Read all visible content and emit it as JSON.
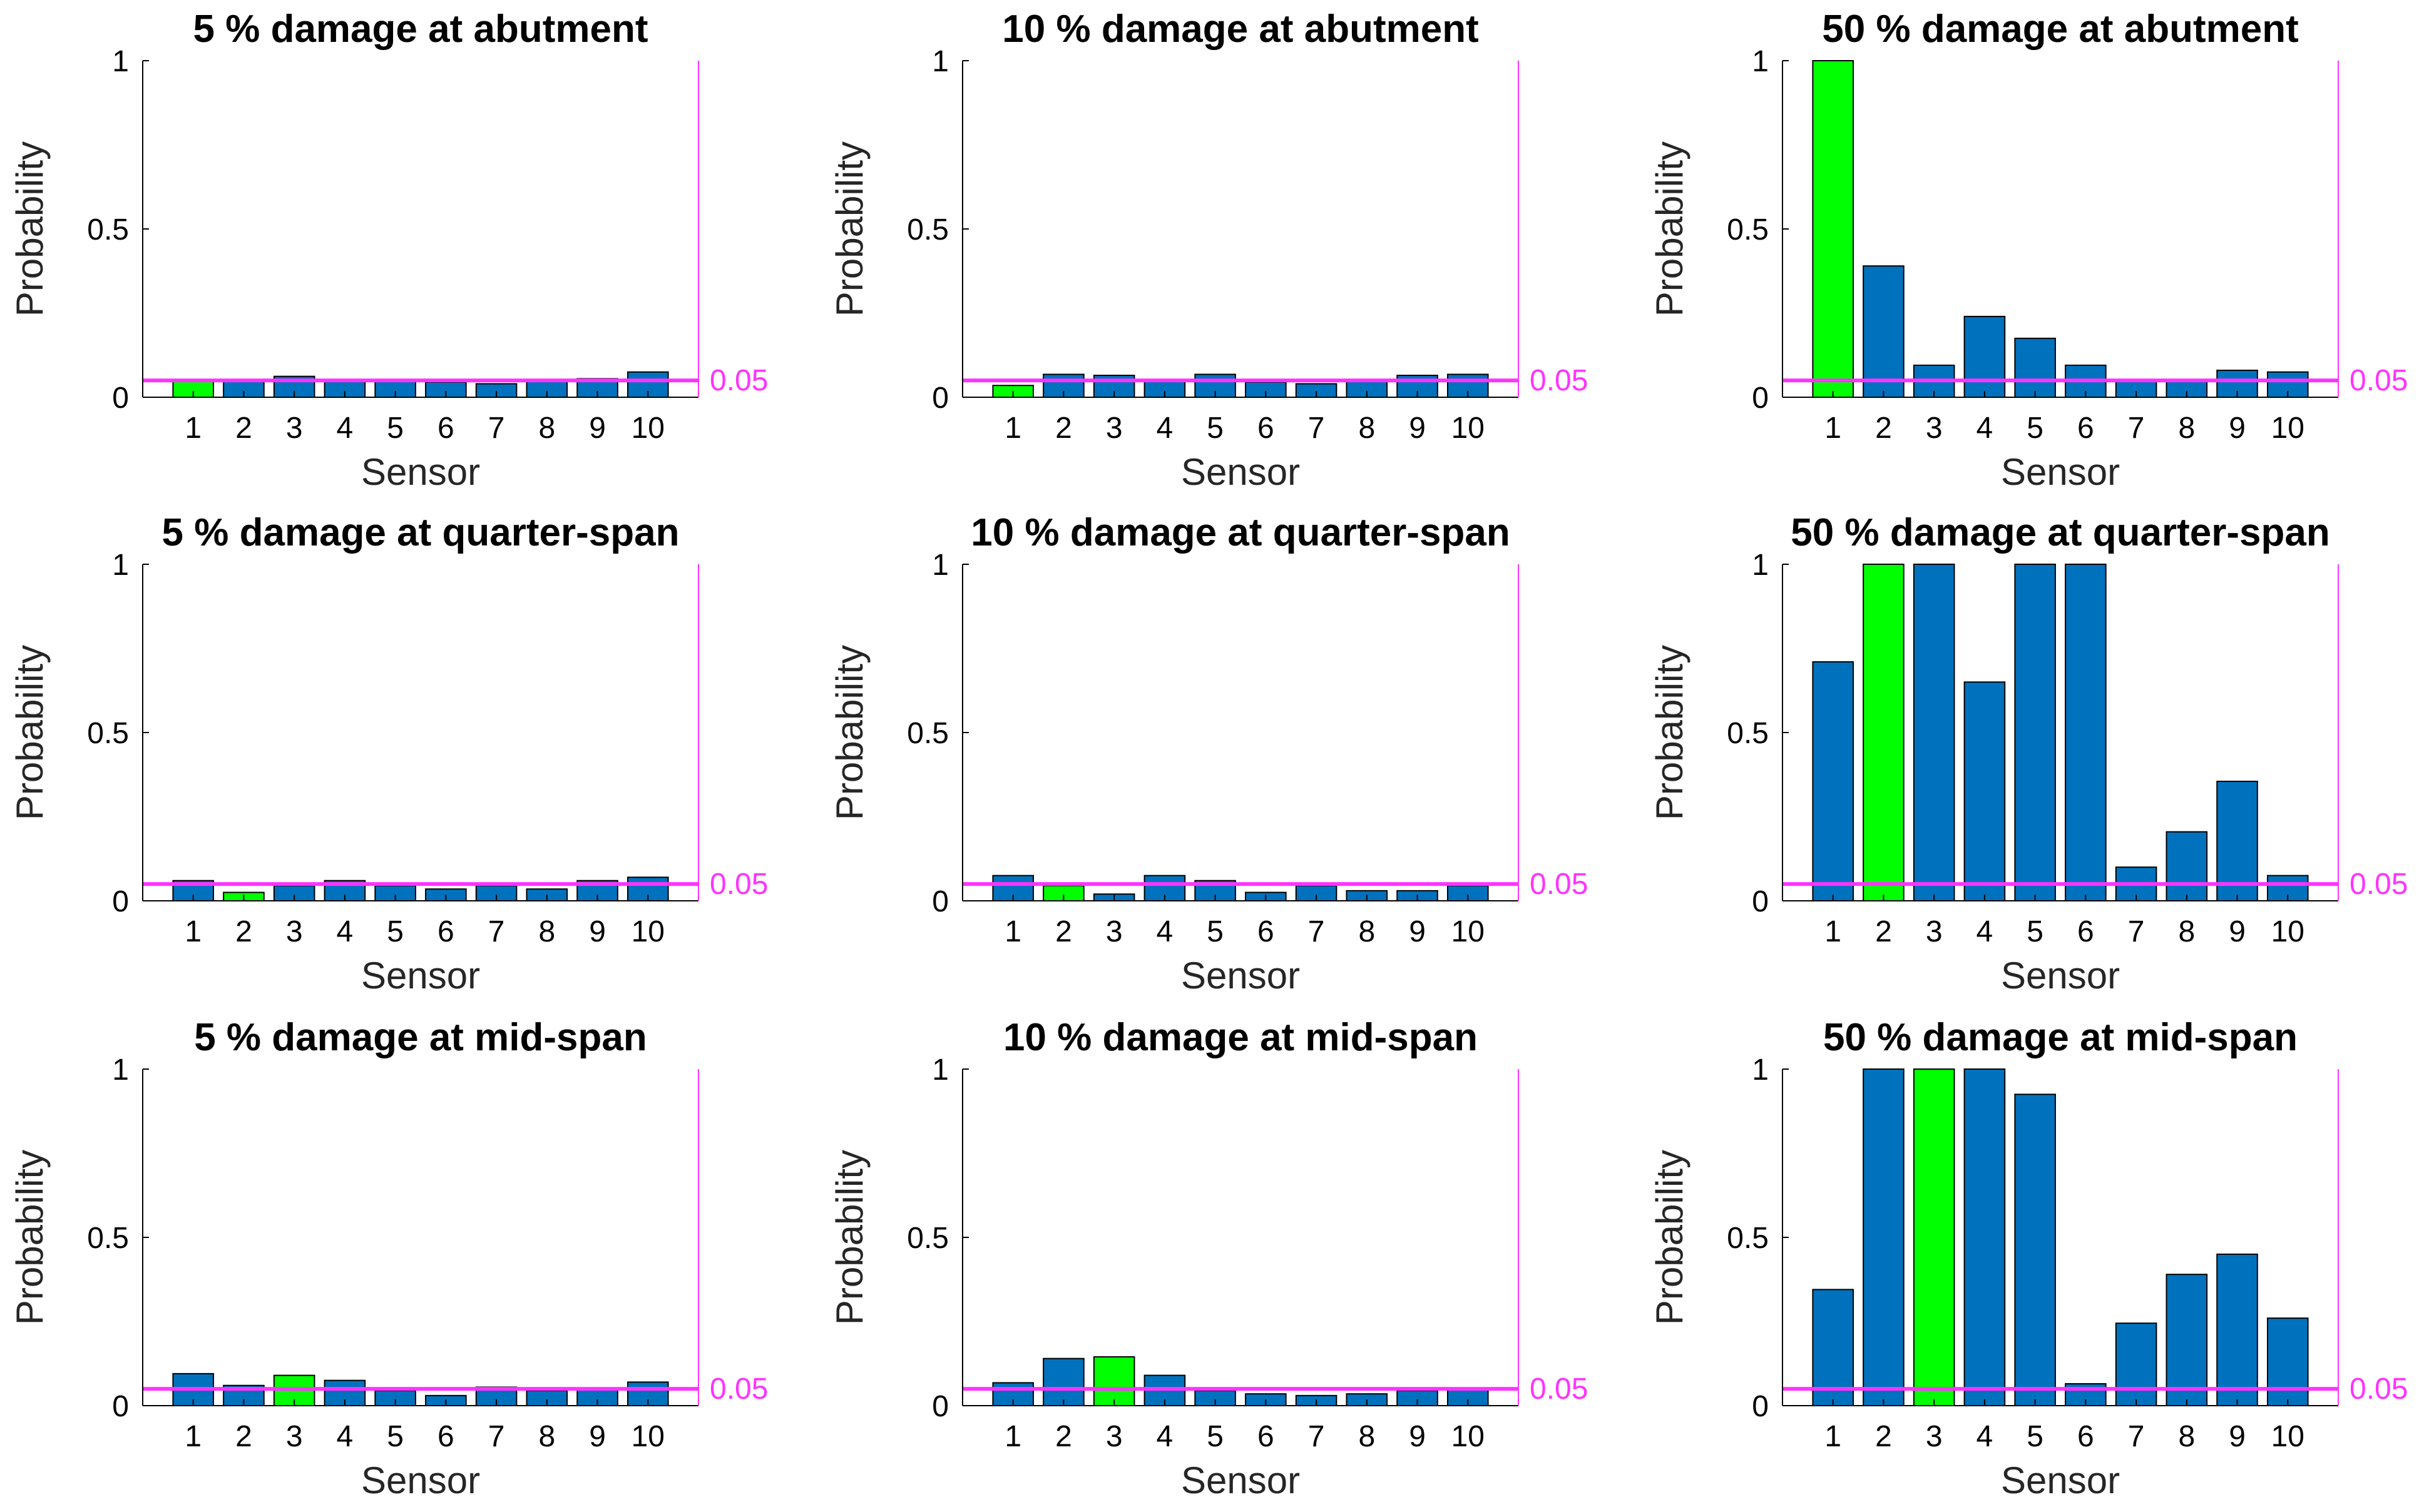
{
  "figure": {
    "threshold": 0.05,
    "threshold_label": "0.05",
    "colors": {
      "bar": "#0072BD",
      "bar_highlight": "#00FF00",
      "threshold": "#FF33FF",
      "bar_edge": "#000000"
    }
  },
  "chart_data": [
    {
      "type": "bar",
      "title": "5 % damage at abutment",
      "xlabel": "Sensor",
      "ylabel": "Probability",
      "categories": [
        "1",
        "2",
        "3",
        "4",
        "5",
        "6",
        "7",
        "8",
        "9",
        "10"
      ],
      "values": [
        0.05,
        0.05,
        0.062,
        0.05,
        0.05,
        0.045,
        0.04,
        0.05,
        0.055,
        0.075
      ],
      "highlight_index": 0,
      "ylim": [
        0,
        1
      ],
      "yticks": [
        "0",
        "0.5",
        "1"
      ],
      "threshold": 0.05
    },
    {
      "type": "bar",
      "title": "10 % damage at abutment",
      "xlabel": "Sensor",
      "ylabel": "Probability",
      "categories": [
        "1",
        "2",
        "3",
        "4",
        "5",
        "6",
        "7",
        "8",
        "9",
        "10"
      ],
      "values": [
        0.035,
        0.068,
        0.065,
        0.05,
        0.068,
        0.045,
        0.04,
        0.05,
        0.065,
        0.068
      ],
      "highlight_index": 0,
      "ylim": [
        0,
        1
      ],
      "yticks": [
        "0",
        "0.5",
        "1"
      ],
      "threshold": 0.05
    },
    {
      "type": "bar",
      "title": "50 % damage at abutment",
      "xlabel": "Sensor",
      "ylabel": "Probability",
      "categories": [
        "1",
        "2",
        "3",
        "4",
        "5",
        "6",
        "7",
        "8",
        "9",
        "10"
      ],
      "values": [
        1.0,
        0.39,
        0.095,
        0.24,
        0.175,
        0.095,
        0.05,
        0.05,
        0.08,
        0.075
      ],
      "highlight_index": 0,
      "ylim": [
        0,
        1
      ],
      "yticks": [
        "0",
        "0.5",
        "1"
      ],
      "threshold": 0.05
    },
    {
      "type": "bar",
      "title": "5 % damage at quarter-span",
      "xlabel": "Sensor",
      "ylabel": "Probability",
      "categories": [
        "1",
        "2",
        "3",
        "4",
        "5",
        "6",
        "7",
        "8",
        "9",
        "10"
      ],
      "values": [
        0.06,
        0.025,
        0.045,
        0.06,
        0.045,
        0.035,
        0.045,
        0.035,
        0.06,
        0.07
      ],
      "highlight_index": 1,
      "ylim": [
        0,
        1
      ],
      "yticks": [
        "0",
        "0.5",
        "1"
      ],
      "threshold": 0.05
    },
    {
      "type": "bar",
      "title": "10 % damage at quarter-span",
      "xlabel": "Sensor",
      "ylabel": "Probability",
      "categories": [
        "1",
        "2",
        "3",
        "4",
        "5",
        "6",
        "7",
        "8",
        "9",
        "10"
      ],
      "values": [
        0.075,
        0.045,
        0.02,
        0.075,
        0.06,
        0.025,
        0.045,
        0.03,
        0.03,
        0.045
      ],
      "highlight_index": 1,
      "ylim": [
        0,
        1
      ],
      "yticks": [
        "0",
        "0.5",
        "1"
      ],
      "threshold": 0.05
    },
    {
      "type": "bar",
      "title": "50 % damage at quarter-span",
      "xlabel": "Sensor",
      "ylabel": "Probability",
      "categories": [
        "1",
        "2",
        "3",
        "4",
        "5",
        "6",
        "7",
        "8",
        "9",
        "10"
      ],
      "values": [
        0.71,
        1.0,
        1.0,
        0.65,
        1.0,
        1.0,
        0.1,
        0.205,
        0.355,
        0.075
      ],
      "highlight_index": 1,
      "ylim": [
        0,
        1
      ],
      "yticks": [
        "0",
        "0.5",
        "1"
      ],
      "threshold": 0.05
    },
    {
      "type": "bar",
      "title": "5 % damage at mid-span",
      "xlabel": "Sensor",
      "ylabel": "Probability",
      "categories": [
        "1",
        "2",
        "3",
        "4",
        "5",
        "6",
        "7",
        "8",
        "9",
        "10"
      ],
      "values": [
        0.095,
        0.06,
        0.09,
        0.075,
        0.045,
        0.03,
        0.055,
        0.045,
        0.05,
        0.07
      ],
      "highlight_index": 2,
      "ylim": [
        0,
        1
      ],
      "yticks": [
        "0",
        "0.5",
        "1"
      ],
      "threshold": 0.05
    },
    {
      "type": "bar",
      "title": "10 % damage at mid-span",
      "xlabel": "Sensor",
      "ylabel": "Probability",
      "categories": [
        "1",
        "2",
        "3",
        "4",
        "5",
        "6",
        "7",
        "8",
        "9",
        "10"
      ],
      "values": [
        0.068,
        0.14,
        0.145,
        0.09,
        0.045,
        0.035,
        0.03,
        0.035,
        0.045,
        0.05
      ],
      "highlight_index": 2,
      "ylim": [
        0,
        1
      ],
      "yticks": [
        "0",
        "0.5",
        "1"
      ],
      "threshold": 0.05
    },
    {
      "type": "bar",
      "title": "50 % damage at mid-span",
      "xlabel": "Sensor",
      "ylabel": "Probability",
      "categories": [
        "1",
        "2",
        "3",
        "4",
        "5",
        "6",
        "7",
        "8",
        "9",
        "10"
      ],
      "values": [
        0.345,
        1.0,
        1.0,
        1.0,
        0.925,
        0.065,
        0.245,
        0.39,
        0.45,
        0.26
      ],
      "highlight_index": 2,
      "ylim": [
        0,
        1
      ],
      "yticks": [
        "0",
        "0.5",
        "1"
      ],
      "threshold": 0.05
    }
  ]
}
